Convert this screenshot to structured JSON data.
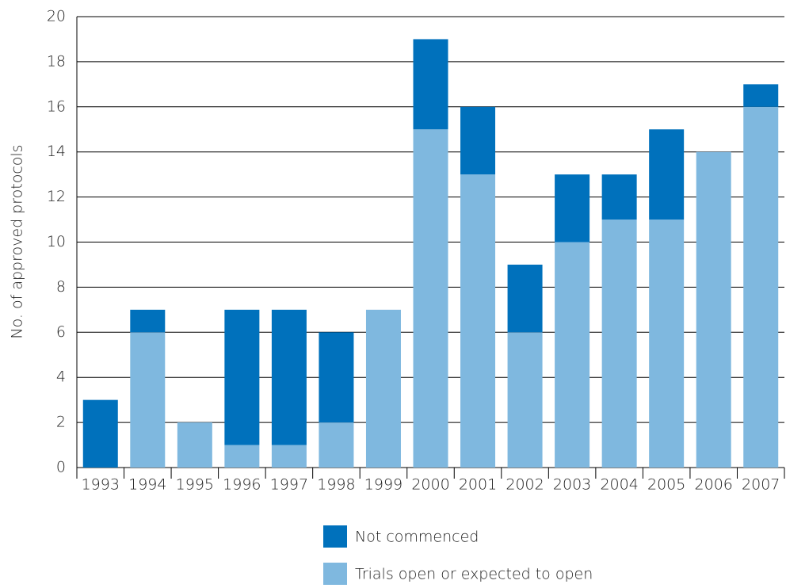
{
  "chart_data": {
    "type": "stacked_bar",
    "y_label": "No. of approved protocols",
    "categories": [
      "1993",
      "1994",
      "1995",
      "1996",
      "1997",
      "1998",
      "1999",
      "2000",
      "2001",
      "2002",
      "2003",
      "2004",
      "2005",
      "2006",
      "2007"
    ],
    "series": [
      {
        "name": "Not commenced",
        "color": "#0071bc",
        "values": [
          3,
          1,
          0,
          6,
          6,
          4,
          0,
          4,
          3,
          3,
          3,
          2,
          4,
          0,
          1
        ]
      },
      {
        "name": "Trials open or expected to open",
        "color": "#7fb8df",
        "values": [
          0,
          6,
          2,
          1,
          1,
          2,
          7,
          15,
          13,
          6,
          10,
          11,
          11,
          14,
          16
        ]
      }
    ],
    "ylim": [
      0,
      20
    ],
    "yticks": [
      0,
      2,
      4,
      6,
      8,
      10,
      12,
      14,
      16,
      18,
      20
    ],
    "grid": true,
    "legend": "bottom"
  }
}
